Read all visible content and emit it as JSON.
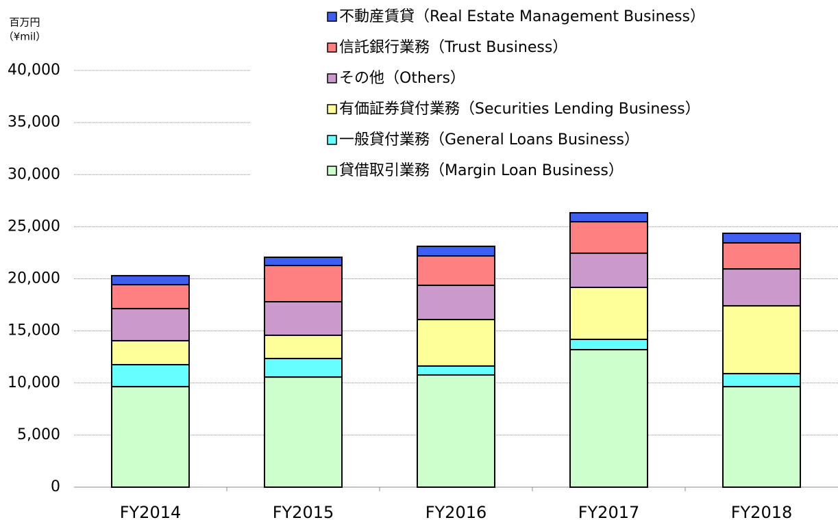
{
  "chart_data": {
    "type": "stacked_bar",
    "ylabel": "百万円",
    "ylabel_sub": "（¥mil）",
    "categories": [
      "FY2014",
      "FY2015",
      "FY2016",
      "FY2017",
      "FY2018"
    ],
    "series": [
      {
        "name": "貸借取引業務（Margin Loan Business）",
        "color": "#ccffcc",
        "values": [
          9650,
          10570,
          10770,
          13200,
          9650
        ]
      },
      {
        "name": "一般貸付業務（General Loans Business）",
        "color": "#66ffff",
        "values": [
          2110,
          1780,
          860,
          990,
          1250
        ]
      },
      {
        "name": "有価証券貸付業務（Securities Lending Business）",
        "color": "#ffff99",
        "values": [
          2300,
          2230,
          4460,
          4990,
          6510
        ]
      },
      {
        "name": "その他（Others）",
        "color": "#cc99cc",
        "values": [
          3080,
          3220,
          3290,
          3280,
          3540
        ]
      },
      {
        "name": "信託銀行業務（Trust Business）",
        "color": "#ff8080",
        "values": [
          2300,
          3480,
          2820,
          3020,
          2500
        ]
      },
      {
        "name": "不動産賃貸（Real Estate Management Business）",
        "color": "#3f5ff0",
        "values": [
          860,
          790,
          920,
          860,
          920
        ]
      }
    ],
    "ylim": [
      0,
      40000
    ],
    "yticks": [
      0,
      {
        "value": 5000,
        "label": "5,000"
      },
      {
        "value": 10000,
        "label": "10,000"
      },
      {
        "value": 15000,
        "label": "15,000"
      },
      {
        "value": 20000,
        "label": "20,000"
      },
      {
        "value": 25000,
        "label": "25,000"
      },
      {
        "value": 30000,
        "label": "30,000"
      },
      {
        "value": 35000,
        "label": "35,000"
      },
      {
        "value": 40000,
        "label": "40,000"
      }
    ],
    "grid": true
  }
}
